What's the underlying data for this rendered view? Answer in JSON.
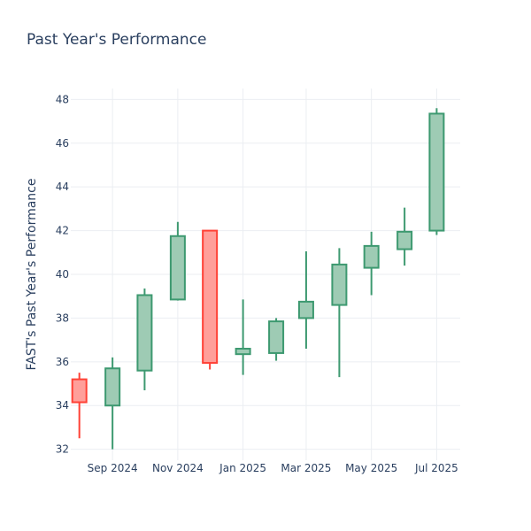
{
  "chart_data": {
    "type": "candlestick",
    "title": "Past Year's Performance",
    "ylabel": "FAST's Past Year's Performance",
    "xlabel": "",
    "ylim": [
      31.5,
      48.5
    ],
    "xlim": [
      "2024-07-24",
      "2025-07-23"
    ],
    "yticks": [
      32,
      34,
      36,
      38,
      40,
      42,
      44,
      46,
      48
    ],
    "xticks": [
      {
        "label": "Sep 2024",
        "date": "2024-09-01"
      },
      {
        "label": "Nov 2024",
        "date": "2024-11-01"
      },
      {
        "label": "Jan 2025",
        "date": "2025-01-01"
      },
      {
        "label": "Mar 2025",
        "date": "2025-03-01"
      },
      {
        "label": "May 2025",
        "date": "2025-05-01"
      },
      {
        "label": "Jul 2025",
        "date": "2025-07-01"
      }
    ],
    "increasing_color": "#3d9970",
    "increasing_fill": "#9ecbb4",
    "decreasing_color": "#ff4136",
    "decreasing_fill": "#ff9f9a",
    "grid": true,
    "candles": [
      {
        "date": "2024-08-01",
        "open": 35.2,
        "high": 35.5,
        "low": 32.5,
        "close": 34.15
      },
      {
        "date": "2024-09-01",
        "open": 34.0,
        "high": 36.2,
        "low": 32.0,
        "close": 35.7
      },
      {
        "date": "2024-10-01",
        "open": 35.6,
        "high": 39.35,
        "low": 34.7,
        "close": 39.05
      },
      {
        "date": "2024-11-01",
        "open": 38.85,
        "high": 42.4,
        "low": 38.8,
        "close": 41.75
      },
      {
        "date": "2024-12-01",
        "open": 42.0,
        "high": 42.0,
        "low": 35.65,
        "close": 35.95
      },
      {
        "date": "2025-01-01",
        "open": 36.35,
        "high": 38.85,
        "low": 35.4,
        "close": 36.6
      },
      {
        "date": "2025-02-01",
        "open": 36.4,
        "high": 38.0,
        "low": 36.05,
        "close": 37.85
      },
      {
        "date": "2025-03-01",
        "open": 38.0,
        "high": 41.05,
        "low": 36.6,
        "close": 38.75
      },
      {
        "date": "2025-04-01",
        "open": 38.6,
        "high": 41.2,
        "low": 35.3,
        "close": 40.45
      },
      {
        "date": "2025-05-01",
        "open": 40.3,
        "high": 41.95,
        "low": 39.05,
        "close": 41.3
      },
      {
        "date": "2025-06-01",
        "open": 41.15,
        "high": 43.05,
        "low": 40.4,
        "close": 41.95
      },
      {
        "date": "2025-07-01",
        "open": 42.0,
        "high": 47.6,
        "low": 41.8,
        "close": 47.35
      }
    ]
  }
}
